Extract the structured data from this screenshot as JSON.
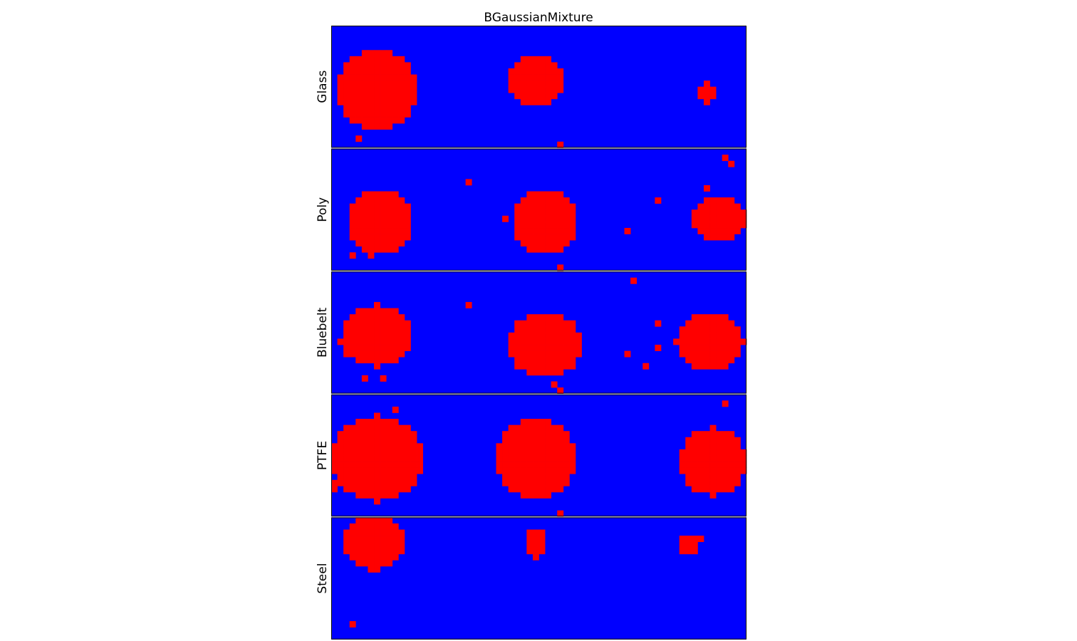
{
  "figure": {
    "title": "BGaussianMixture"
  },
  "chart_data": {
    "type": "heatmap",
    "title": "BGaussianMixture",
    "legend": "none",
    "grid": false,
    "colors": {
      "background_class": "#0000ff",
      "foreground_class": "#ff0000",
      "frame": "#000000"
    },
    "cell_grid": {
      "columns": 68,
      "rows": 20
    },
    "panels": [
      {
        "label": "Glass",
        "blobs": [
          {
            "center": [
              7.5,
              10.5
            ],
            "radius": [
              6.5,
              6.5
            ]
          },
          {
            "center": [
              33.5,
              9.0
            ],
            "radius": [
              4.6,
              4.2
            ]
          },
          {
            "center": [
              61.5,
              11.0
            ],
            "radius": [
              1.5,
              1.6
            ]
          }
        ],
        "specks": [
          [
            4,
            18
          ],
          [
            37,
            19
          ]
        ]
      },
      {
        "label": "Poly",
        "blobs": [
          {
            "center": [
              8.0,
              12.0
            ],
            "radius": [
              5.5,
              5.2
            ]
          },
          {
            "center": [
              35.0,
              12.0
            ],
            "radius": [
              5.5,
              5.2
            ]
          },
          {
            "center": [
              63.5,
              11.5
            ],
            "radius": [
              4.6,
              3.9
            ]
          }
        ],
        "specks": [
          [
            22,
            5
          ],
          [
            3,
            17
          ],
          [
            6,
            17
          ],
          [
            28,
            11
          ],
          [
            37,
            19
          ],
          [
            48,
            13
          ],
          [
            53,
            8
          ],
          [
            64,
            1
          ],
          [
            65,
            2
          ],
          [
            61,
            6
          ]
        ]
      },
      {
        "label": "Bluebelt",
        "blobs": [
          {
            "center": [
              7.5,
              10.5
            ],
            "radius": [
              5.5,
              5.0
            ]
          },
          {
            "center": [
              35.0,
              12.0
            ],
            "radius": [
              6.0,
              5.5
            ]
          },
          {
            "center": [
              62.0,
              11.5
            ],
            "radius": [
              5.5,
              4.8
            ]
          }
        ],
        "specks": [
          [
            22,
            5
          ],
          [
            49,
            1
          ],
          [
            1,
            11
          ],
          [
            2,
            13
          ],
          [
            48,
            13
          ],
          [
            51,
            15
          ],
          [
            53,
            8
          ],
          [
            53,
            12
          ],
          [
            36,
            18
          ],
          [
            37,
            19
          ],
          [
            5,
            17
          ],
          [
            8,
            17
          ]
        ]
      },
      {
        "label": "PTFE",
        "blobs": [
          {
            "center": [
              7.5,
              10.5
            ],
            "radius": [
              7.5,
              7.0
            ]
          },
          {
            "center": [
              33.5,
              10.5
            ],
            "radius": [
              6.7,
              6.5
            ]
          },
          {
            "center": [
              62.5,
              11.0
            ],
            "radius": [
              5.5,
              5.5
            ]
          }
        ],
        "specks": [
          [
            10,
            2
          ],
          [
            2,
            5
          ],
          [
            64,
            1
          ],
          [
            37,
            19
          ],
          [
            0,
            15
          ],
          [
            0,
            14
          ]
        ]
      },
      {
        "label": "Steel",
        "blobs": [
          {
            "center": [
              7.0,
              4.0
            ],
            "radius": [
              5.0,
              4.6
            ]
          },
          {
            "center": [
              33.5,
              3.9
            ],
            "radius": [
              2.0,
              2.1
            ]
          },
          {
            "center": [
              58.5,
              4.5
            ],
            "radius": [
              1.7,
              1.4
            ]
          }
        ],
        "specks": [
          [
            3,
            17
          ],
          [
            33,
            6
          ],
          [
            60,
            3
          ]
        ]
      }
    ]
  }
}
